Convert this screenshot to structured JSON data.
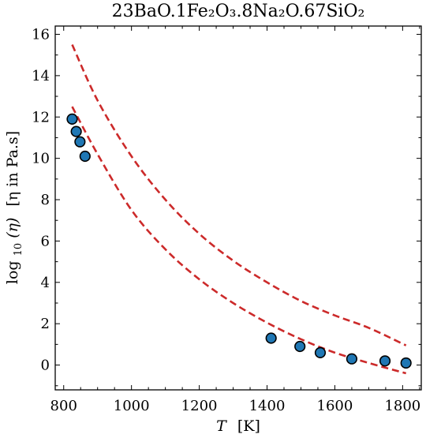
{
  "chart_data": {
    "type": "scatter",
    "title": "23BaO.1Fe₂O₃.8Na₂O.67SiO₂",
    "xlabel": {
      "var": "T",
      "unit": "[K]"
    },
    "ylabel": {
      "prefix": "log",
      "sub": "10",
      "var": "(η)",
      "unit": "[η in Pa.s]"
    },
    "xlim": [
      775,
      1855
    ],
    "ylim": [
      -1.2,
      16.4
    ],
    "xticks": [
      800,
      1000,
      1200,
      1400,
      1600,
      1800
    ],
    "yticks": [
      0,
      2,
      4,
      6,
      8,
      10,
      12,
      14,
      16
    ],
    "point_color": "#1f77b4",
    "curve_color": "#cc2a2a",
    "points": [
      {
        "x": 825,
        "y": 11.9
      },
      {
        "x": 837,
        "y": 11.3
      },
      {
        "x": 848,
        "y": 10.8
      },
      {
        "x": 863,
        "y": 10.1
      },
      {
        "x": 1412,
        "y": 1.3
      },
      {
        "x": 1497,
        "y": 0.9
      },
      {
        "x": 1557,
        "y": 0.6
      },
      {
        "x": 1650,
        "y": 0.3
      },
      {
        "x": 1748,
        "y": 0.2
      },
      {
        "x": 1810,
        "y": 0.1
      }
    ],
    "bounds": [
      {
        "x": [
          825,
          900,
          1000,
          1100,
          1200,
          1300,
          1400,
          1500,
          1600,
          1700,
          1810
        ],
        "y": [
          15.5,
          12.8,
          10.1,
          8.0,
          6.35,
          5.05,
          4.0,
          3.1,
          2.4,
          1.8,
          0.95
        ]
      },
      {
        "x": [
          825,
          900,
          1000,
          1100,
          1200,
          1300,
          1400,
          1500,
          1600,
          1700,
          1810
        ],
        "y": [
          12.5,
          10.2,
          7.5,
          5.6,
          4.15,
          3.0,
          2.05,
          1.25,
          0.6,
          0.1,
          -0.4
        ]
      }
    ]
  }
}
